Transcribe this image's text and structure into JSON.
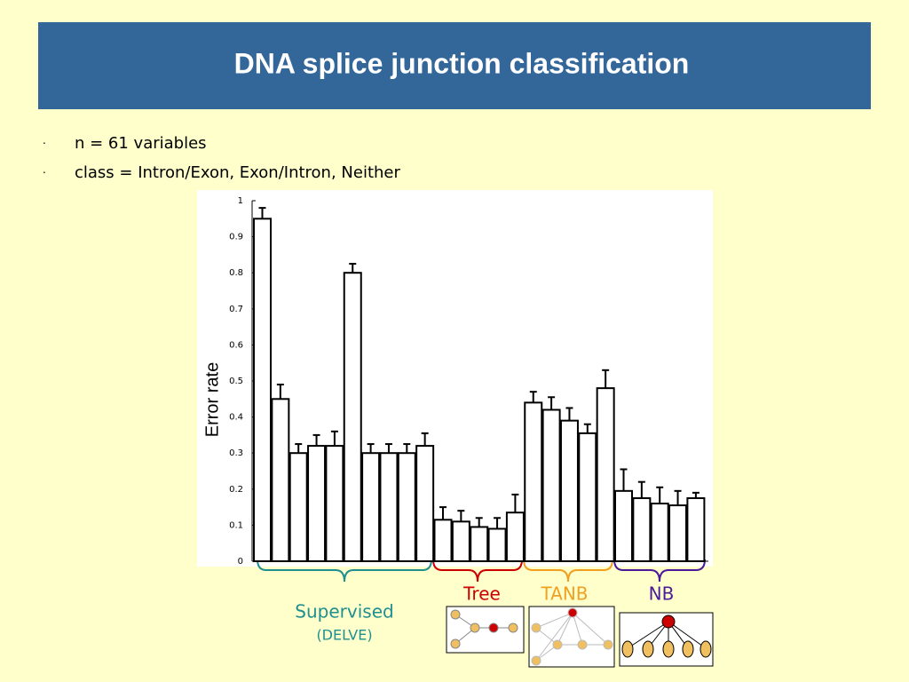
{
  "slide": {
    "title": "DNA splice junction classification",
    "bullets": [
      "n = 61 variables",
      "class = Intron/Exon, Exon/Intron, Neither"
    ]
  },
  "chart_data": {
    "type": "bar",
    "y_label": "Error rate",
    "categories": [
      null,
      null,
      null,
      null,
      null,
      null,
      null,
      null,
      null,
      null,
      null,
      null,
      null,
      null,
      null,
      null,
      null,
      null,
      null,
      null,
      null,
      null,
      null,
      null,
      null
    ],
    "values": [
      0.95,
      0.45,
      0.3,
      0.32,
      0.32,
      0.8,
      0.3,
      0.3,
      0.3,
      0.32,
      0.115,
      0.11,
      0.095,
      0.09,
      0.135,
      0.44,
      0.42,
      0.39,
      0.355,
      0.48,
      0.195,
      0.175,
      0.16,
      0.155,
      0.175
    ],
    "errors": [
      0.03,
      0.04,
      0.025,
      0.03,
      0.04,
      0.025,
      0.025,
      0.025,
      0.025,
      0.035,
      0.035,
      0.03,
      0.025,
      0.03,
      0.05,
      0.03,
      0.035,
      0.035,
      0.025,
      0.05,
      0.06,
      0.045,
      0.045,
      0.04,
      0.015
    ],
    "color": "#ffffff",
    "ylim": [
      0,
      1
    ],
    "yticks": [
      0,
      0.1,
      0.2,
      0.3,
      0.4,
      0.5,
      0.6,
      0.7,
      0.8,
      0.9,
      1
    ],
    "groups": [
      {
        "label": "Supervised",
        "sublabel": "(DELVE)",
        "color": "#1f8f8f"
      },
      {
        "label": "Tree",
        "color": "#cc0000"
      },
      {
        "label": "TANB",
        "color": "#f0a020"
      },
      {
        "label": "NB",
        "color": "#4b1a9a"
      }
    ]
  }
}
